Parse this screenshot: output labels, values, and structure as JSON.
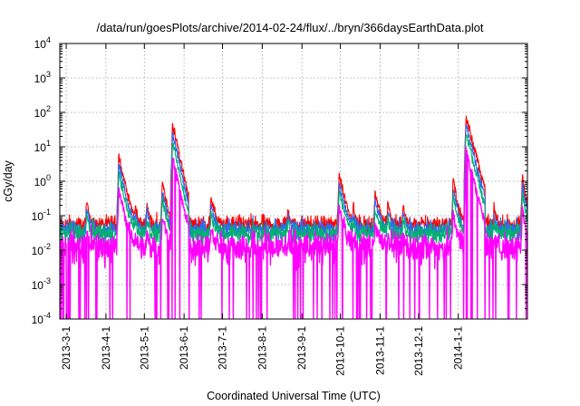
{
  "chart_data": {
    "type": "line",
    "title": "/data/run/goesPlots/archive/2014-02-24/flux/../bryn/366daysEarthData.plot",
    "xlabel": "Coordinated Universal Time (UTC)",
    "ylabel": "cGy/day",
    "yscale": "log",
    "ylim": [
      0.0001,
      10000
    ],
    "xlim": [
      "2013-02-24",
      "2014-02-24"
    ],
    "grid": true,
    "x_ticks": [
      "2013-3-1",
      "2013-4-1",
      "2013-5-1",
      "2013-6-1",
      "2013-7-1",
      "2013-8-1",
      "2013-9-1",
      "2013-10-1",
      "2013-11-1",
      "2013-12-1",
      "2014-1-1"
    ],
    "y_ticks": [
      {
        "value": 0.0001,
        "base": "10",
        "exp": "-4"
      },
      {
        "value": 0.001,
        "base": "10",
        "exp": "-3"
      },
      {
        "value": 0.01,
        "base": "10",
        "exp": "-2"
      },
      {
        "value": 0.1,
        "base": "10",
        "exp": "-1"
      },
      {
        "value": 1,
        "base": "10",
        "exp": "0"
      },
      {
        "value": 10,
        "base": "10",
        "exp": "1"
      },
      {
        "value": 100,
        "base": "10",
        "exp": "2"
      },
      {
        "value": 1000,
        "base": "10",
        "exp": "3"
      },
      {
        "value": 10000,
        "base": "10",
        "exp": "4"
      }
    ],
    "series": [
      {
        "color": "#ff0000",
        "baseline": 0.055,
        "noise": 0.25
      },
      {
        "color": "#2a6cf0",
        "baseline": 0.04,
        "noise": 0.28
      },
      {
        "color": "#00b070",
        "baseline": 0.03,
        "noise": 0.3
      },
      {
        "color": "#ff00ff",
        "baseline": 0.012,
        "noise": 0.45,
        "drop_floor": 0.0001
      }
    ],
    "events": [
      {
        "date": "2013-03-17",
        "peak": 0.25,
        "width": 1.5
      },
      {
        "date": "2013-04-11",
        "peak": 6.0,
        "width": 2.5
      },
      {
        "date": "2013-04-24",
        "peak": 0.15,
        "width": 1.2
      },
      {
        "date": "2013-05-03",
        "peak": 0.2,
        "width": 1.2
      },
      {
        "date": "2013-05-15",
        "peak": 0.9,
        "width": 2.0
      },
      {
        "date": "2013-05-23",
        "peak": 50.0,
        "width": 2.5
      },
      {
        "date": "2013-06-22",
        "peak": 0.3,
        "width": 2.0
      },
      {
        "date": "2013-08-21",
        "peak": 0.1,
        "width": 1.5
      },
      {
        "date": "2013-09-30",
        "peak": 1.7,
        "width": 2.5
      },
      {
        "date": "2013-10-11",
        "peak": 0.12,
        "width": 1.2
      },
      {
        "date": "2013-10-28",
        "peak": 0.4,
        "width": 2.5
      },
      {
        "date": "2013-11-07",
        "peak": 0.2,
        "width": 1.5
      },
      {
        "date": "2013-11-19",
        "peak": 0.15,
        "width": 1.5
      },
      {
        "date": "2013-12-28",
        "peak": 1.1,
        "width": 2.0
      },
      {
        "date": "2014-01-07",
        "peak": 80.0,
        "width": 3.0
      },
      {
        "date": "2014-01-29",
        "peak": 0.12,
        "width": 1.2
      },
      {
        "date": "2014-02-20",
        "peak": 1.4,
        "width": 1.8
      }
    ]
  }
}
